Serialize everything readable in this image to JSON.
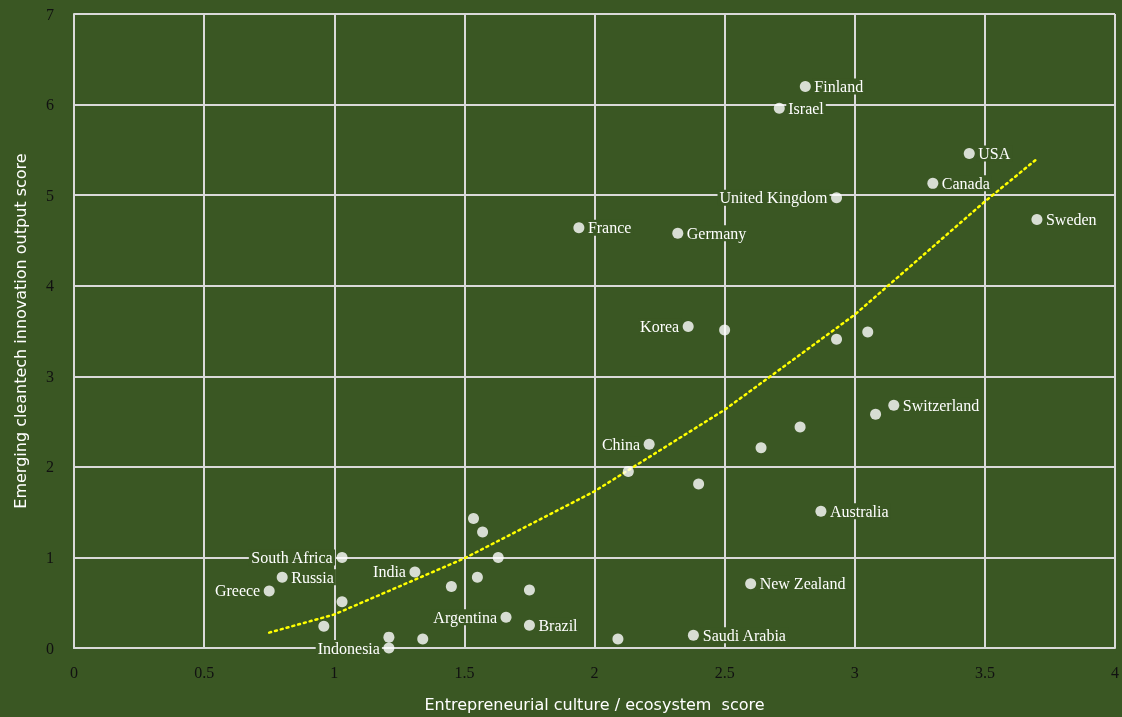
{
  "chart_data": {
    "type": "scatter",
    "xlabel": "Entrepreneurial culture / ecosystem  score",
    "ylabel": "Emerging cleantech innovation output score",
    "xlim": [
      0,
      4
    ],
    "xticks": [
      0,
      0.5,
      1,
      1.5,
      2,
      2.5,
      3,
      3.5,
      4
    ],
    "ylim": [
      0,
      7
    ],
    "yticks": [
      0,
      1,
      2,
      3,
      4,
      5,
      6,
      7
    ],
    "grid": true,
    "series": [
      {
        "color": "#ffffff",
        "marker": "circle",
        "x": [
          2.81,
          2.71,
          3.44,
          3.3,
          2.93,
          3.7,
          1.94,
          2.32,
          2.36,
          2.5,
          2.93,
          3.05,
          3.15,
          3.08,
          2.79,
          2.64,
          2.21,
          2.13,
          2.4,
          2.87,
          2.6,
          2.38,
          2.09,
          1.535,
          1.57,
          1.63,
          1.03,
          0.8,
          0.75,
          1.03,
          0.96,
          1.31,
          1.45,
          1.55,
          1.75,
          1.66,
          1.75,
          1.21,
          1.21,
          1.34
        ],
        "values": [
          6.2,
          5.96,
          5.46,
          5.13,
          4.97,
          4.73,
          4.64,
          4.58,
          3.55,
          3.51,
          3.41,
          3.49,
          2.68,
          2.58,
          2.44,
          2.21,
          2.25,
          1.95,
          1.81,
          1.51,
          0.71,
          0.14,
          0.1,
          1.43,
          1.28,
          1.0,
          1.0,
          0.78,
          0.63,
          0.51,
          0.24,
          0.84,
          0.68,
          0.78,
          0.64,
          0.34,
          0.25,
          0.12,
          0.0,
          0.1
        ]
      },
      {
        "type": "line",
        "color": "#ffff00",
        "line_style": "dotted",
        "marker": "none",
        "x": [
          0.75,
          1,
          1.5,
          2,
          2.5,
          3,
          3.5,
          3.7
        ],
        "values": [
          0.17,
          0.37,
          0.99,
          1.73,
          2.63,
          3.68,
          4.93,
          5.4
        ]
      }
    ],
    "annotations": [
      {
        "text": "Finland",
        "x": 2.81,
        "y": 6.2
      },
      {
        "text": "Israel",
        "x": 2.71,
        "y": 5.96
      },
      {
        "text": "USA",
        "x": 3.44,
        "y": 5.46
      },
      {
        "text": "Canada",
        "x": 3.3,
        "y": 5.13
      },
      {
        "text": "United Kingdom",
        "x": 2.93,
        "y": 4.97
      },
      {
        "text": "Sweden",
        "x": 3.7,
        "y": 4.73
      },
      {
        "text": "France",
        "x": 1.94,
        "y": 4.64
      },
      {
        "text": "Germany",
        "x": 2.32,
        "y": 4.58
      },
      {
        "text": "Korea",
        "x": 2.36,
        "y": 3.55
      },
      {
        "text": "China",
        "x": 2.21,
        "y": 2.25
      },
      {
        "text": "Switzerland",
        "x": 3.15,
        "y": 2.68
      },
      {
        "text": "Australia",
        "x": 2.87,
        "y": 1.51
      },
      {
        "text": "New Zealand",
        "x": 2.6,
        "y": 0.71
      },
      {
        "text": "Saudi Arabia",
        "x": 2.38,
        "y": 0.14
      },
      {
        "text": "South Africa",
        "x": 1.03,
        "y": 1.0
      },
      {
        "text": "Russia",
        "x": 0.8,
        "y": 0.78
      },
      {
        "text": "Greece",
        "x": 0.75,
        "y": 0.63
      },
      {
        "text": "India",
        "x": 1.31,
        "y": 0.84
      },
      {
        "text": "Argentina",
        "x": 1.66,
        "y": 0.34
      },
      {
        "text": "Brazil",
        "x": 1.75,
        "y": 0.25
      },
      {
        "text": "Indonesia",
        "x": 1.21,
        "y": 0.0
      }
    ]
  }
}
